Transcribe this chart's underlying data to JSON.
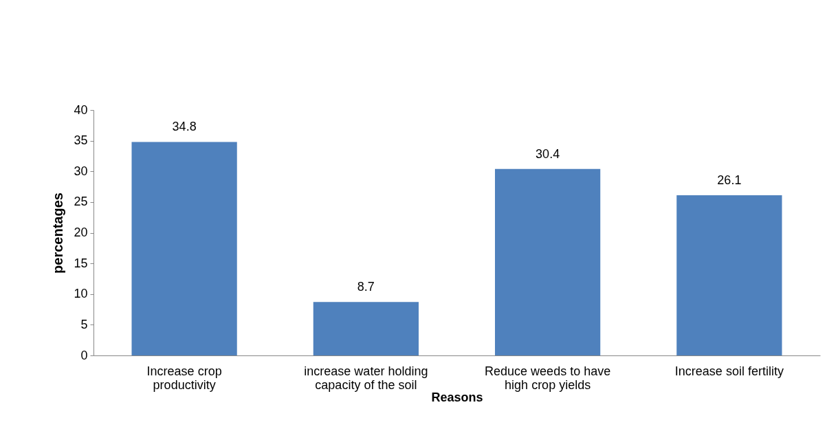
{
  "chart_data": {
    "type": "bar",
    "xlabel": "Reasons",
    "ylabel": "percentages",
    "categories": [
      "Increase crop productivity",
      "increase water holding capacity of the soil",
      "Reduce weeds to have high crop yields",
      "Increase soil fertility"
    ],
    "values": [
      34.8,
      8.7,
      30.4,
      26.1
    ],
    "color": "#4f81bd",
    "ylim": [
      0,
      40
    ],
    "yticks": [
      0,
      5,
      10,
      15,
      20,
      25,
      30,
      35,
      40
    ],
    "grid": false,
    "data_labels": true
  }
}
